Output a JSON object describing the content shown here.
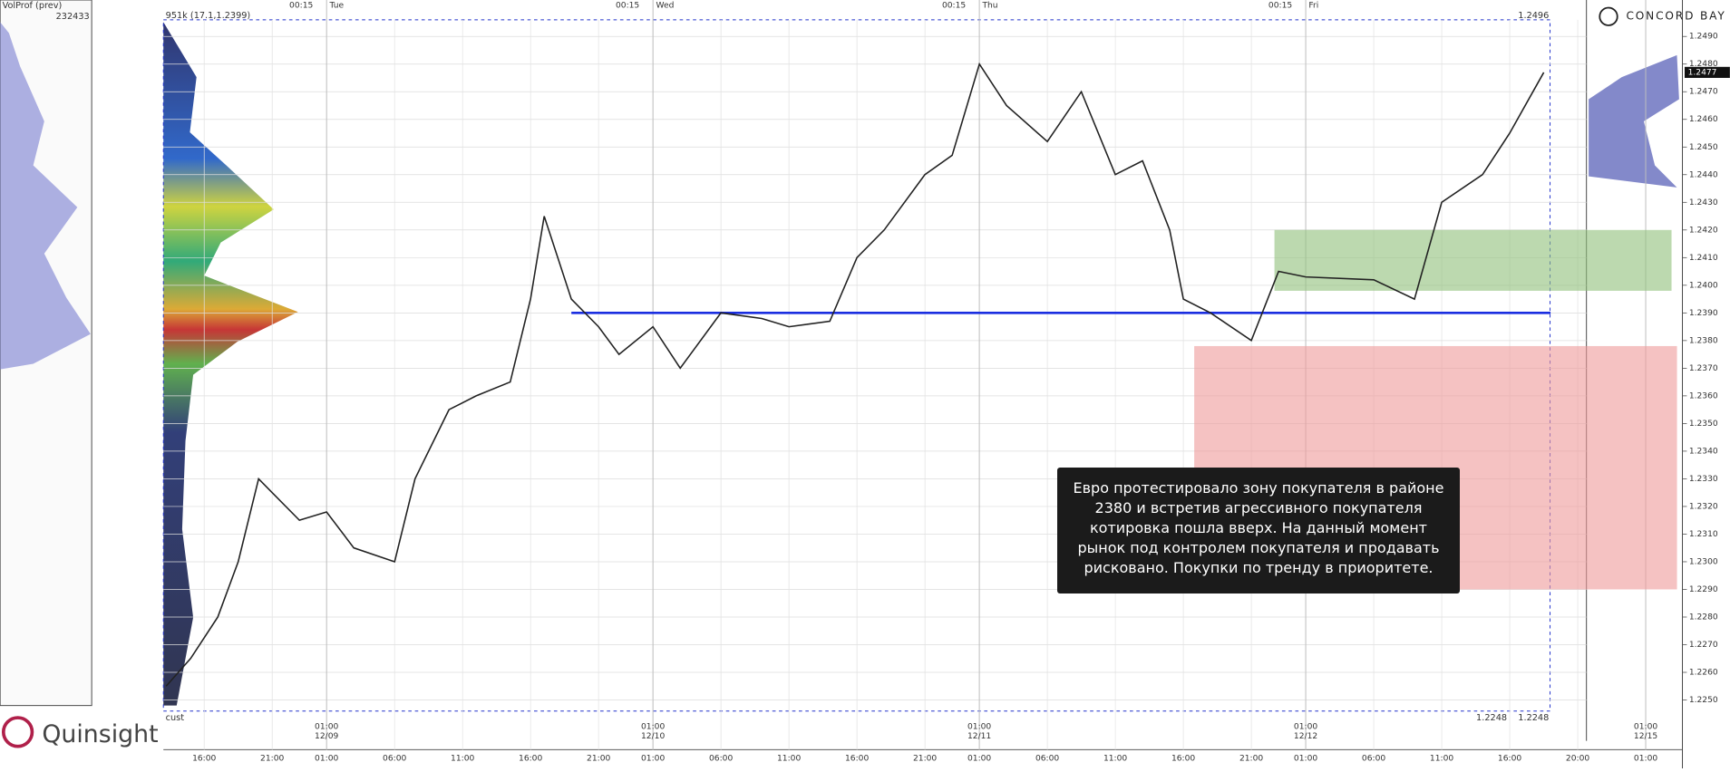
{
  "header": {
    "left_panel_title": "VolProf (prev)",
    "left_panel_value": "232433",
    "chart_info": "951k (17.1,1.2399)",
    "high_label": "1.2496",
    "low_labels": [
      "1.2248",
      "1.2248"
    ],
    "footer_left": "cust",
    "brand_left": "Quinsight",
    "brand_right": "CONCORD BAY",
    "last_price": "1.2477"
  },
  "annotation": "Евро протестировало зону покупателя в районе 2380 и встретив агрессивного покупателя котировка пошла вверх. На данный момент рынок под контролем покупателя и продавать рисковано. Покупки по тренду в приоритете.",
  "chart_data": {
    "type": "line",
    "color": "#222222",
    "x": [
      -2.8,
      -1,
      1,
      2.5,
      4,
      5,
      7,
      9,
      11,
      14,
      15.5,
      18,
      20,
      22.5,
      24,
      25,
      27,
      29,
      30.5,
      33,
      35,
      38,
      41,
      43,
      46,
      48,
      50,
      53,
      55,
      57,
      59,
      62,
      64.5,
      67,
      69,
      71,
      72,
      74,
      77,
      79,
      81,
      86,
      89,
      91,
      94,
      96,
      98.5
    ],
    "values": [
      1.2255,
      1.2265,
      1.228,
      1.23,
      1.233,
      1.2325,
      1.2315,
      1.2318,
      1.2305,
      1.23,
      1.233,
      1.2355,
      1.236,
      1.2365,
      1.2395,
      1.2425,
      1.2395,
      1.2385,
      1.2375,
      1.2385,
      1.237,
      1.239,
      1.2388,
      1.2385,
      1.2387,
      1.241,
      1.242,
      1.244,
      1.2447,
      1.248,
      1.2465,
      1.2452,
      1.247,
      1.244,
      1.2445,
      1.242,
      1.2395,
      1.239,
      1.238,
      1.2405,
      1.2403,
      1.2402,
      1.2395,
      1.243,
      1.244,
      1.2455,
      1.2477
    ],
    "xlim": [
      -3,
      108.7
    ],
    "ylim": [
      1.2246,
      1.2496
    ],
    "xticks": [
      {
        "value": 0,
        "label": "16:00"
      },
      {
        "value": 5,
        "label": "21:00"
      },
      {
        "value": 9,
        "label": "01:00"
      },
      {
        "value": 14,
        "label": "06:00"
      },
      {
        "value": 19,
        "label": "11:00"
      },
      {
        "value": 24,
        "label": "16:00"
      },
      {
        "value": 29,
        "label": "21:00"
      },
      {
        "value": 33,
        "label": "01:00"
      },
      {
        "value": 38,
        "label": "06:00"
      },
      {
        "value": 43,
        "label": "11:00"
      },
      {
        "value": 48,
        "label": "16:00"
      },
      {
        "value": 53,
        "label": "21:00"
      },
      {
        "value": 57,
        "label": "01:00"
      },
      {
        "value": 62,
        "label": "06:00"
      },
      {
        "value": 67,
        "label": "11:00"
      },
      {
        "value": 72,
        "label": "16:00"
      },
      {
        "value": 77,
        "label": "21:00"
      },
      {
        "value": 81,
        "label": "01:00"
      },
      {
        "value": 86,
        "label": "06:00"
      },
      {
        "value": 91,
        "label": "11:00"
      },
      {
        "value": 96,
        "label": "16:00"
      },
      {
        "value": 101,
        "label": "20:00"
      },
      {
        "value": 106,
        "label": "01:00"
      }
    ],
    "date_marks": [
      {
        "value": 9,
        "time": "01:00",
        "date": "12/09"
      },
      {
        "value": 33,
        "time": "01:00",
        "date": "12/10"
      },
      {
        "value": 57,
        "time": "01:00",
        "date": "12/11"
      },
      {
        "value": 81,
        "time": "01:00",
        "date": "12/12"
      },
      {
        "value": 106,
        "time": "01:00",
        "date": "12/15"
      }
    ],
    "session_marks": [
      {
        "value": 8.25,
        "time": "00:15",
        "day": "Tue"
      },
      {
        "value": 32.25,
        "time": "00:15",
        "day": "Wed"
      },
      {
        "value": 56.25,
        "time": "00:15",
        "day": "Thu"
      },
      {
        "value": 80.25,
        "time": "00:15",
        "day": "Fri"
      }
    ],
    "yticks": [
      {
        "value": 1.225,
        "label": "1.2250"
      },
      {
        "value": 1.226,
        "label": "1.2260"
      },
      {
        "value": 1.227,
        "label": "1.2270"
      },
      {
        "value": 1.228,
        "label": "1.2280"
      },
      {
        "value": 1.229,
        "label": "1.2290"
      },
      {
        "value": 1.23,
        "label": "1.2300"
      },
      {
        "value": 1.231,
        "label": "1.2310"
      },
      {
        "value": 1.232,
        "label": "1.2320"
      },
      {
        "value": 1.233,
        "label": "1.2330"
      },
      {
        "value": 1.234,
        "label": "1.2340"
      },
      {
        "value": 1.235,
        "label": "1.2350"
      },
      {
        "value": 1.236,
        "label": "1.2360"
      },
      {
        "value": 1.237,
        "label": "1.2370"
      },
      {
        "value": 1.238,
        "label": "1.2380"
      },
      {
        "value": 1.239,
        "label": "1.2390"
      },
      {
        "value": 1.24,
        "label": "1.2400"
      },
      {
        "value": 1.241,
        "label": "1.2410"
      },
      {
        "value": 1.242,
        "label": "1.2420"
      },
      {
        "value": 1.243,
        "label": "1.2430"
      },
      {
        "value": 1.244,
        "label": "1.2440"
      },
      {
        "value": 1.245,
        "label": "1.2450"
      },
      {
        "value": 1.246,
        "label": "1.2460"
      },
      {
        "value": 1.247,
        "label": "1.2470"
      },
      {
        "value": 1.248,
        "label": "1.2480"
      },
      {
        "value": 1.249,
        "label": "1.2490"
      }
    ],
    "zones": [
      {
        "from": 1.2398,
        "to": 1.242,
        "x0": 78.7,
        "x1": 107.9,
        "color": "#8fbf7a"
      },
      {
        "from": 1.229,
        "to": 1.2378,
        "x0": 72.8,
        "x1": 108.3,
        "color": "#ee9a9a"
      }
    ],
    "levels": [
      {
        "value": 1.239,
        "x0": 27,
        "x1": 99,
        "color": "#1a2ee0"
      }
    ],
    "last_value": 1.2477,
    "grid": true
  }
}
